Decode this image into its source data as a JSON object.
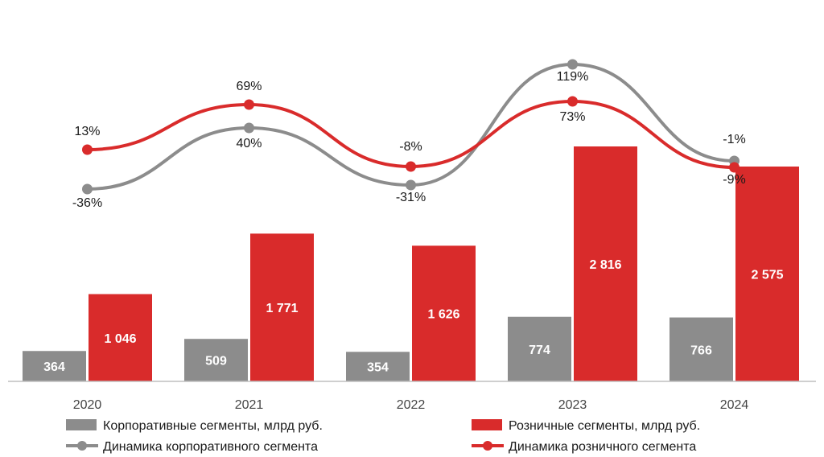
{
  "chart_data": {
    "type": "bar",
    "categories": [
      "2020",
      "2021",
      "2022",
      "2023",
      "2024"
    ],
    "series": [
      {
        "name": "Корпоративные сегменты, млрд руб.",
        "kind": "bar",
        "color": "#8c8c8c",
        "values": [
          364,
          509,
          354,
          774,
          766
        ],
        "labels": [
          "364",
          "509",
          "354",
          "774",
          "766"
        ]
      },
      {
        "name": "Розничные сегменты, млрд руб.",
        "kind": "bar",
        "color": "#d92b2b",
        "values": [
          1046,
          1771,
          1626,
          2816,
          2575
        ],
        "labels": [
          "1 046",
          "1 771",
          "1 626",
          "2 816",
          "2 575"
        ]
      },
      {
        "name": "Динамика корпоративного сегмента",
        "kind": "line",
        "color": "#8c8c8c",
        "values": [
          -36,
          40,
          -31,
          119,
          -1
        ],
        "labels": [
          "-36%",
          "40%",
          "-31%",
          "119%",
          "-1%"
        ]
      },
      {
        "name": "Динамика розничного сегмента",
        "kind": "line",
        "color": "#d92b2b",
        "values": [
          13,
          69,
          -8,
          73,
          -9
        ],
        "labels": [
          "13%",
          "69%",
          "-8%",
          "73%",
          "-9%"
        ]
      }
    ],
    "bar_ylim": [
      0,
      3500
    ],
    "line_ylim": [
      -60,
      130
    ],
    "grid": false,
    "legend_position": "bottom"
  }
}
